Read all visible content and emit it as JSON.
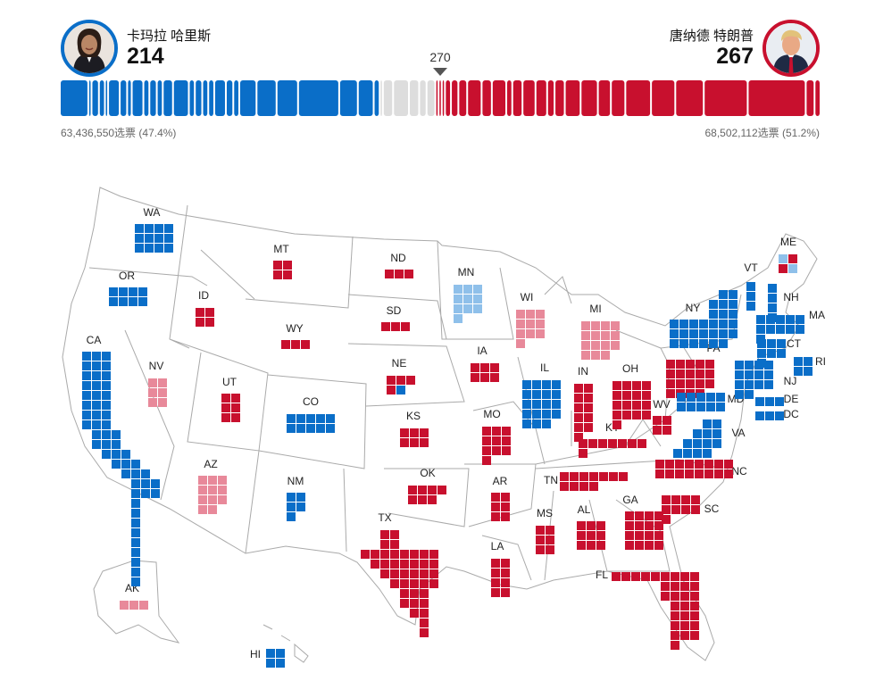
{
  "header": {
    "harris": {
      "name": "卡玛拉 哈里斯",
      "ev": "214",
      "votes": "63,436,550选票 (47.4%)"
    },
    "trump": {
      "name": "唐纳德 特朗普",
      "ev": "267",
      "votes": "68,502,112选票 (51.2%)"
    },
    "threshold": "270"
  },
  "colors": {
    "dem": "#0a6ec8",
    "dem_lean": "#8fc0ea",
    "rep": "#c8102e",
    "rep_lean": "#e8899a",
    "undecided": "#dddddd",
    "map_outline": "#aaaaaa"
  },
  "bar_segments": [
    {
      "color": "dem",
      "size": 19
    },
    {
      "color": "dem",
      "size": 1
    },
    {
      "color": "dem",
      "size": 4
    },
    {
      "color": "dem",
      "size": 3
    },
    {
      "color": "dem",
      "size": 1
    },
    {
      "color": "dem",
      "size": 7
    },
    {
      "color": "dem",
      "size": 4
    },
    {
      "color": "dem",
      "size": 2
    },
    {
      "color": "dem",
      "size": 7
    },
    {
      "color": "dem",
      "size": 3
    },
    {
      "color": "dem",
      "size": 4
    },
    {
      "color": "dem",
      "size": 3
    },
    {
      "color": "dem",
      "size": 6
    },
    {
      "color": "dem",
      "size": 10
    },
    {
      "color": "dem",
      "size": 3
    },
    {
      "color": "dem",
      "size": 4
    },
    {
      "color": "dem",
      "size": 3
    },
    {
      "color": "dem",
      "size": 3
    },
    {
      "color": "dem",
      "size": 7
    },
    {
      "color": "dem",
      "size": 4
    },
    {
      "color": "dem",
      "size": 3
    },
    {
      "color": "dem",
      "size": 11
    },
    {
      "color": "dem",
      "size": 13
    },
    {
      "color": "dem",
      "size": 14
    },
    {
      "color": "dem",
      "size": 28
    },
    {
      "color": "dem",
      "size": 12
    },
    {
      "color": "dem",
      "size": 10
    },
    {
      "color": "dem",
      "size": 3
    },
    {
      "color": "undecided",
      "size": 1
    },
    {
      "color": "undecided",
      "size": 6
    },
    {
      "color": "undecided",
      "size": 10
    },
    {
      "color": "undecided",
      "size": 6
    },
    {
      "color": "undecided",
      "size": 4
    },
    {
      "color": "undecided",
      "size": 5
    },
    {
      "color": "rep",
      "size": 1
    },
    {
      "color": "rep",
      "size": 1
    },
    {
      "color": "rep",
      "size": 1
    },
    {
      "color": "rep",
      "size": 3
    },
    {
      "color": "rep",
      "size": 4
    },
    {
      "color": "rep",
      "size": 5
    },
    {
      "color": "rep",
      "size": 9
    },
    {
      "color": "rep",
      "size": 6
    },
    {
      "color": "rep",
      "size": 9
    },
    {
      "color": "rep",
      "size": 3
    },
    {
      "color": "rep",
      "size": 6
    },
    {
      "color": "rep",
      "size": 8
    },
    {
      "color": "rep",
      "size": 7
    },
    {
      "color": "rep",
      "size": 4
    },
    {
      "color": "rep",
      "size": 6
    },
    {
      "color": "rep",
      "size": 10
    },
    {
      "color": "rep",
      "size": 11
    },
    {
      "color": "rep",
      "size": 8
    },
    {
      "color": "rep",
      "size": 9
    },
    {
      "color": "rep",
      "size": 17
    },
    {
      "color": "rep",
      "size": 16
    },
    {
      "color": "rep",
      "size": 19
    },
    {
      "color": "rep",
      "size": 30
    },
    {
      "color": "rep",
      "size": 40
    },
    {
      "color": "rep",
      "size": 5
    },
    {
      "color": "rep",
      "size": 3
    }
  ],
  "states": [
    {
      "abbr": "WA",
      "ev": 12,
      "status": "dem"
    },
    {
      "abbr": "OR",
      "ev": 8,
      "status": "dem"
    },
    {
      "abbr": "CA",
      "ev": 54,
      "status": "dem"
    },
    {
      "abbr": "NV",
      "ev": 6,
      "status": "rep_lean"
    },
    {
      "abbr": "ID",
      "ev": 4,
      "status": "rep"
    },
    {
      "abbr": "MT",
      "ev": 4,
      "status": "rep"
    },
    {
      "abbr": "WY",
      "ev": 3,
      "status": "rep"
    },
    {
      "abbr": "UT",
      "ev": 6,
      "status": "rep"
    },
    {
      "abbr": "AZ",
      "ev": 11,
      "status": "rep_lean"
    },
    {
      "abbr": "CO",
      "ev": 10,
      "status": "dem"
    },
    {
      "abbr": "NM",
      "ev": 5,
      "status": "dem"
    },
    {
      "abbr": "ND",
      "ev": 3,
      "status": "rep"
    },
    {
      "abbr": "SD",
      "ev": 3,
      "status": "rep"
    },
    {
      "abbr": "NE",
      "ev": 5,
      "status": "split"
    },
    {
      "abbr": "KS",
      "ev": 6,
      "status": "rep"
    },
    {
      "abbr": "OK",
      "ev": 7,
      "status": "rep"
    },
    {
      "abbr": "TX",
      "ev": 40,
      "status": "rep"
    },
    {
      "abbr": "MN",
      "ev": 10,
      "status": "dem_lean"
    },
    {
      "abbr": "IA",
      "ev": 6,
      "status": "rep"
    },
    {
      "abbr": "MO",
      "ev": 10,
      "status": "rep"
    },
    {
      "abbr": "AR",
      "ev": 6,
      "status": "rep"
    },
    {
      "abbr": "LA",
      "ev": 8,
      "status": "rep"
    },
    {
      "abbr": "WI",
      "ev": 10,
      "status": "rep_lean"
    },
    {
      "abbr": "IL",
      "ev": 19,
      "status": "dem"
    },
    {
      "abbr": "MI",
      "ev": 15,
      "status": "rep_lean"
    },
    {
      "abbr": "IN",
      "ev": 11,
      "status": "rep"
    },
    {
      "abbr": "OH",
      "ev": 17,
      "status": "rep"
    },
    {
      "abbr": "KY",
      "ev": 8,
      "status": "rep"
    },
    {
      "abbr": "TN",
      "ev": 11,
      "status": "rep"
    },
    {
      "abbr": "MS",
      "ev": 6,
      "status": "rep"
    },
    {
      "abbr": "AL",
      "ev": 9,
      "status": "rep"
    },
    {
      "abbr": "GA",
      "ev": 16,
      "status": "rep"
    },
    {
      "abbr": "FL",
      "ev": 30,
      "status": "rep"
    },
    {
      "abbr": "SC",
      "ev": 9,
      "status": "rep"
    },
    {
      "abbr": "NC",
      "ev": 16,
      "status": "rep"
    },
    {
      "abbr": "VA",
      "ev": 13,
      "status": "dem"
    },
    {
      "abbr": "WV",
      "ev": 4,
      "status": "rep"
    },
    {
      "abbr": "PA",
      "ev": 19,
      "status": "rep"
    },
    {
      "abbr": "NY",
      "ev": 28,
      "status": "dem"
    },
    {
      "abbr": "VT",
      "ev": 3,
      "status": "dem"
    },
    {
      "abbr": "NH",
      "ev": 4,
      "status": "dem"
    },
    {
      "abbr": "ME",
      "ev": 4,
      "status": "split"
    },
    {
      "abbr": "MA",
      "ev": 11,
      "status": "dem"
    },
    {
      "abbr": "CT",
      "ev": 7,
      "status": "dem"
    },
    {
      "abbr": "RI",
      "ev": 4,
      "status": "dem"
    },
    {
      "abbr": "NJ",
      "ev": 14,
      "status": "dem"
    },
    {
      "abbr": "DE",
      "ev": 3,
      "status": "dem"
    },
    {
      "abbr": "MD",
      "ev": 10,
      "status": "dem"
    },
    {
      "abbr": "DC",
      "ev": 3,
      "status": "dem"
    },
    {
      "abbr": "AK",
      "ev": 3,
      "status": "rep_lean"
    },
    {
      "abbr": "HI",
      "ev": 4,
      "status": "dem"
    }
  ]
}
